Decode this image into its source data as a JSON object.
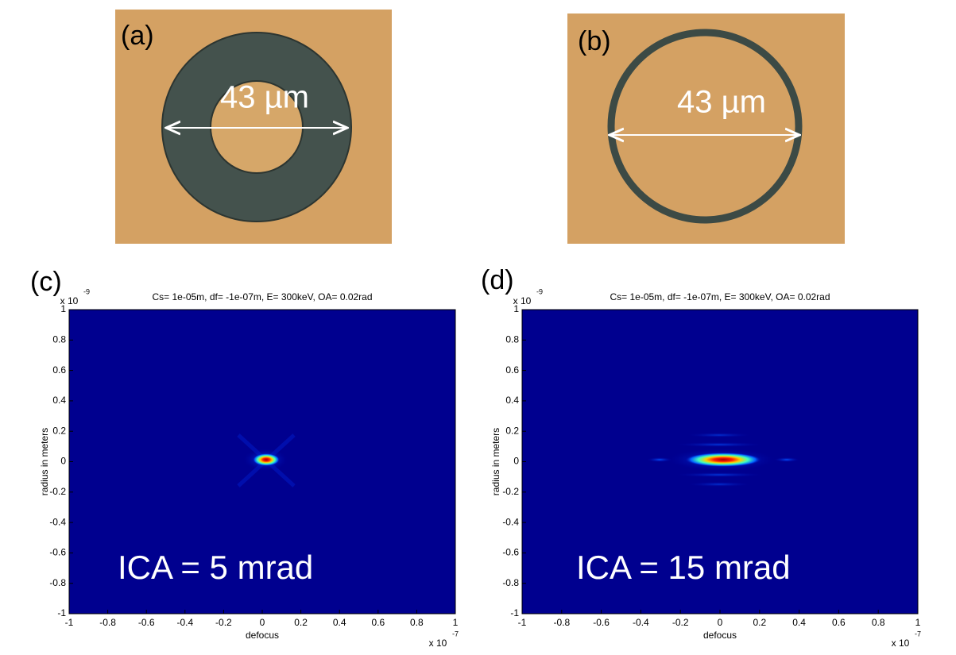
{
  "panels": [
    {
      "label": "(a)",
      "scale": "43 µm"
    },
    {
      "label": "(b)",
      "scale": "43 µm"
    }
  ],
  "chart_data": [
    {
      "type": "heatmap",
      "label": "(c)",
      "title": "Cs= 1e-05m, df= -1e-07m, E= 300keV, OA= 0.02rad",
      "x_label": "defocus",
      "y_label": "radius in meters",
      "x_multiplier": {
        "base": "x 10",
        "exponent": "-7"
      },
      "y_multiplier": {
        "base": "x 10",
        "exponent": "-9"
      },
      "annotation": "ICA = 5 mrad",
      "xlim": [
        -1,
        1
      ],
      "ylim": [
        -1,
        1
      ],
      "xticks": [
        -1,
        -0.8,
        -0.6,
        -0.4,
        -0.2,
        0,
        0.2,
        0.4,
        0.6,
        0.8,
        1
      ],
      "yticks": [
        -1,
        -0.8,
        -0.6,
        -0.4,
        -0.2,
        0,
        0.2,
        0.4,
        0.6,
        0.8,
        1
      ]
    },
    {
      "type": "heatmap",
      "label": "(d)",
      "title": "Cs= 1e-05m, df= -1e-07m, E= 300keV, OA= 0.02rad",
      "x_label": "defocus",
      "y_label": "radius in meters",
      "x_multiplier": {
        "base": "x 10",
        "exponent": "-7"
      },
      "y_multiplier": {
        "base": "x 10",
        "exponent": "-9"
      },
      "annotation": "ICA = 15 mrad",
      "xlim": [
        -1,
        1
      ],
      "ylim": [
        -1,
        1
      ],
      "xticks": [
        -1,
        -0.8,
        -0.6,
        -0.4,
        -0.2,
        0,
        0.2,
        0.4,
        0.6,
        0.8,
        1
      ],
      "yticks": [
        -1,
        -0.8,
        -0.6,
        -0.4,
        -0.2,
        0,
        0.2,
        0.4,
        0.6,
        0.8,
        1
      ]
    }
  ]
}
